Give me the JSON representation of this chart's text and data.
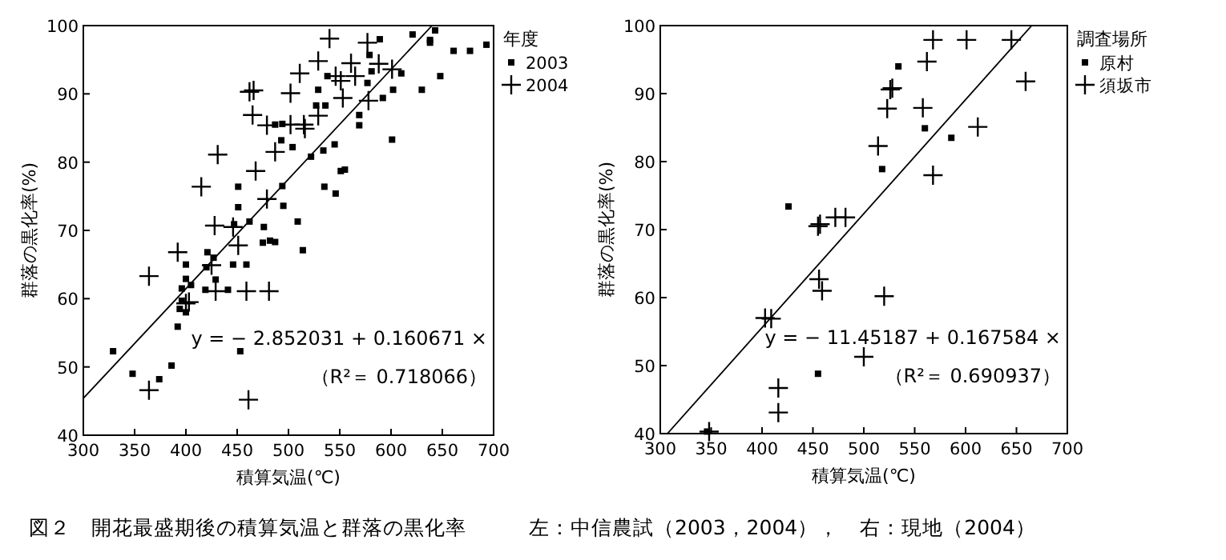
{
  "chart_data": [
    {
      "type": "scatter",
      "xlabel": "積算気温(℃)",
      "ylabel": "群落の黒化率(%)",
      "legend_title": "年度",
      "legend": "top right",
      "grid": false,
      "xlim": [
        300,
        700
      ],
      "xticks": [
        300,
        350,
        400,
        450,
        500,
        550,
        600,
        650,
        700
      ],
      "ylim": [
        40,
        100
      ],
      "yticks": [
        40,
        50,
        60,
        70,
        80,
        90,
        100
      ],
      "series": [
        {
          "name": "2003",
          "marker": "square",
          "color": "#000000",
          "x": [
            329,
            348,
            374,
            386,
            392,
            394,
            396,
            400,
            396,
            400,
            400,
            405,
            419,
            420,
            421,
            427,
            429,
            441,
            446,
            447,
            451,
            451,
            453,
            459,
            462,
            475,
            476,
            482,
            487,
            487,
            493,
            494,
            495,
            494,
            504,
            509,
            514,
            522,
            527,
            529,
            534,
            535,
            536,
            538,
            545,
            546,
            551,
            555,
            569,
            569,
            577,
            581,
            579,
            589,
            592,
            601,
            602,
            610,
            621,
            630,
            638,
            638,
            643,
            648,
            661,
            677,
            693
          ],
          "values": [
            52.3,
            49.0,
            48.2,
            50.2,
            55.9,
            58.5,
            59.7,
            58.0,
            61.5,
            65.0,
            62.9,
            62.0,
            61.3,
            64.6,
            66.8,
            66.0,
            62.8,
            61.3,
            65.0,
            70.9,
            73.4,
            76.4,
            52.3,
            65.0,
            71.3,
            68.2,
            70.5,
            68.5,
            68.3,
            85.5,
            83.2,
            76.5,
            73.6,
            85.6,
            82.2,
            71.3,
            67.1,
            80.8,
            88.3,
            90.6,
            81.7,
            76.4,
            88.3,
            92.6,
            82.6,
            75.4,
            78.7,
            78.9,
            86.9,
            85.4,
            91.6,
            93.3,
            95.7,
            98.0,
            89.4,
            83.3,
            90.6,
            93.0,
            98.7,
            90.6,
            97.9,
            97.5,
            99.3,
            92.6,
            96.3,
            96.3,
            97.2
          ]
        },
        {
          "name": "2004",
          "marker": "cross",
          "color": "#000000",
          "x": [
            364,
            364,
            392,
            400,
            403,
            415,
            428,
            431,
            425,
            429,
            446,
            451,
            459,
            461,
            462,
            465,
            466,
            468,
            479,
            479,
            481,
            487,
            502,
            502,
            511,
            515,
            516,
            529,
            529,
            540,
            546,
            551,
            553,
            561,
            565,
            577,
            578,
            588,
            601
          ],
          "values": [
            46.6,
            63.3,
            66.8,
            59.3,
            59.5,
            76.4,
            70.7,
            81.1,
            64.9,
            61.1,
            70.5,
            67.8,
            61.1,
            45.2,
            90.3,
            86.9,
            90.5,
            78.7,
            85.4,
            74.6,
            61.1,
            81.5,
            90.1,
            85.5,
            93.0,
            85.5,
            84.9,
            86.8,
            94.8,
            98.1,
            92.6,
            91.9,
            89.4,
            94.5,
            92.6,
            97.5,
            89.0,
            94.4,
            93.6
          ]
        },
        {
          "type": "line",
          "color": "#000000",
          "x": [
            300,
            640
          ],
          "values": [
            45.4,
            100
          ]
        }
      ],
      "annotations": [
        "y = − 2.852031 + 0.160671 ×",
        "（R²＝ 0.718066）",
        "図２　開花最盛期後の積算気温と群落の黒化率　　　左：中信農試（2003，2004），　右：現地（2004）"
      ]
    },
    {
      "type": "scatter",
      "xlabel": "積算気温(℃)",
      "ylabel": "群落の黒化率(%)",
      "legend_title": "調査場所",
      "legend": "top right",
      "grid": false,
      "xlim": [
        300,
        700
      ],
      "xticks": [
        300,
        350,
        400,
        450,
        500,
        550,
        600,
        650,
        700
      ],
      "ylim": [
        40,
        100
      ],
      "yticks": [
        40,
        50,
        60,
        70,
        80,
        90,
        100
      ],
      "series": [
        {
          "name": "原村",
          "marker": "square",
          "color": "#000000",
          "x": [
            346,
            426,
            455,
            518,
            534,
            560,
            586
          ],
          "values": [
            40.3,
            73.4,
            48.8,
            78.9,
            94.0,
            84.9,
            83.5
          ]
        },
        {
          "name": "須坂市",
          "marker": "cross",
          "color": "#000000",
          "x": [
            348,
            403,
            409,
            416,
            416,
            455,
            457,
            456,
            459,
            472,
            482,
            500,
            514,
            520,
            523,
            526,
            528,
            558,
            562,
            568,
            568,
            601,
            612,
            645,
            659
          ],
          "values": [
            40.3,
            57.0,
            56.9,
            43.1,
            46.7,
            70.5,
            70.8,
            62.7,
            61.0,
            71.8,
            71.8,
            51.3,
            82.3,
            60.2,
            87.8,
            90.6,
            90.8,
            87.9,
            94.7,
            97.9,
            78.0,
            97.9,
            85.1,
            97.9,
            91.8
          ]
        },
        {
          "type": "line",
          "color": "#000000",
          "x": [
            307,
            665
          ],
          "values": [
            40,
            100
          ]
        }
      ],
      "annotations": [
        "y = − 11.45187 + 0.167584 ×",
        "（R²＝ 0.690937）"
      ]
    }
  ]
}
